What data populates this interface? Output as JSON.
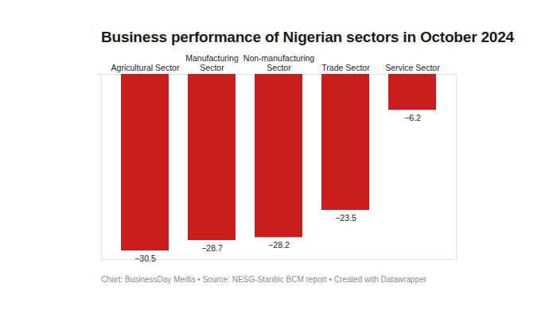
{
  "chart_data": {
    "type": "bar",
    "title": "Business performance of Nigerian sectors in October 2024",
    "categories": [
      "Agricultural Sector",
      "Manufacturing Sector",
      "Non-manufacturing Sector",
      "Trade Sector",
      "Service Sector"
    ],
    "values": [
      -30.5,
      -28.7,
      -28.2,
      -23.5,
      -6.2
    ],
    "color": "#c91d1e",
    "ylim": [
      -32,
      0
    ],
    "yticks": [
      0
    ],
    "grid": false,
    "data_labels": true,
    "tick_labels": "x",
    "caption": "Chart: BusinessDay Media • Source: NESG-Stanbic BCM report • Created with Datawrapper"
  }
}
